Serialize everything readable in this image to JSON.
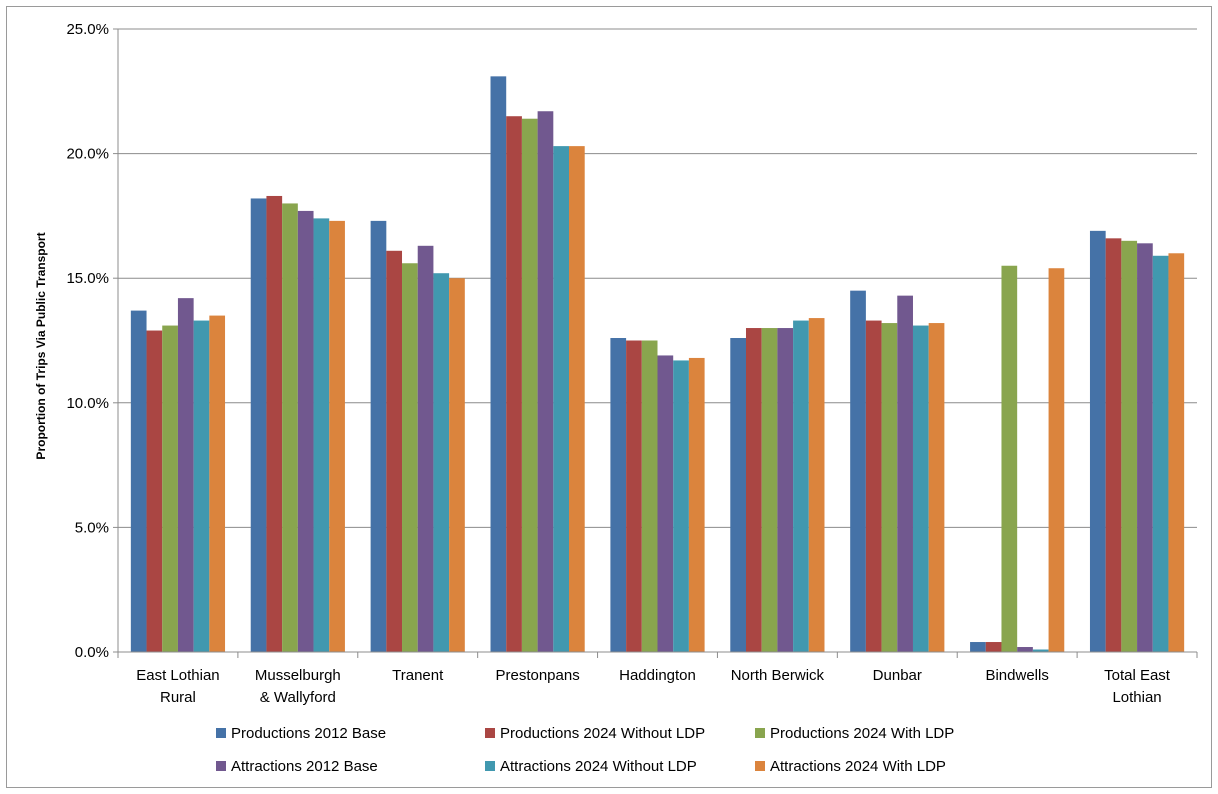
{
  "chart_data": {
    "type": "bar",
    "ylabel": "Proportion of Trips Via Public Transport",
    "ylim": [
      0,
      25
    ],
    "y_ticks": [
      "0.0%",
      "5.0%",
      "10.0%",
      "15.0%",
      "20.0%",
      "25.0%"
    ],
    "grid": "horizontal",
    "legend_position": "bottom",
    "categories": [
      [
        "East Lothian",
        "Rural"
      ],
      [
        "Musselburgh",
        "& Wallyford"
      ],
      [
        "Tranent"
      ],
      [
        "Prestonpans"
      ],
      [
        "Haddington"
      ],
      [
        "North Berwick"
      ],
      [
        "Dunbar"
      ],
      [
        "Bindwells"
      ],
      [
        "Total East",
        "Lothian"
      ]
    ],
    "series": [
      {
        "name": "Productions 2012 Base",
        "color": "#4572A7",
        "values": [
          13.7,
          18.2,
          17.3,
          23.1,
          12.6,
          12.6,
          14.5,
          0.4,
          16.9
        ]
      },
      {
        "name": "Productions 2024 Without LDP",
        "color": "#AA4643",
        "values": [
          12.9,
          18.3,
          16.1,
          21.5,
          12.5,
          13.0,
          13.3,
          0.4,
          16.6
        ]
      },
      {
        "name": "Productions 2024 With LDP",
        "color": "#89A54E",
        "values": [
          13.1,
          18.0,
          15.6,
          21.4,
          12.5,
          13.0,
          13.2,
          15.5,
          16.5
        ]
      },
      {
        "name": "Attractions 2012 Base",
        "color": "#71588F",
        "values": [
          14.2,
          17.7,
          16.3,
          21.7,
          11.9,
          13.0,
          14.3,
          0.2,
          16.4
        ]
      },
      {
        "name": "Attractions 2024 Without LDP",
        "color": "#4198AF",
        "values": [
          13.3,
          17.4,
          15.2,
          20.3,
          11.7,
          13.3,
          13.1,
          0.1,
          15.9
        ]
      },
      {
        "name": "Attractions 2024 With LDP",
        "color": "#DB843D",
        "values": [
          13.5,
          17.3,
          15.0,
          20.3,
          11.8,
          13.4,
          13.2,
          15.4,
          16.0
        ]
      }
    ]
  }
}
